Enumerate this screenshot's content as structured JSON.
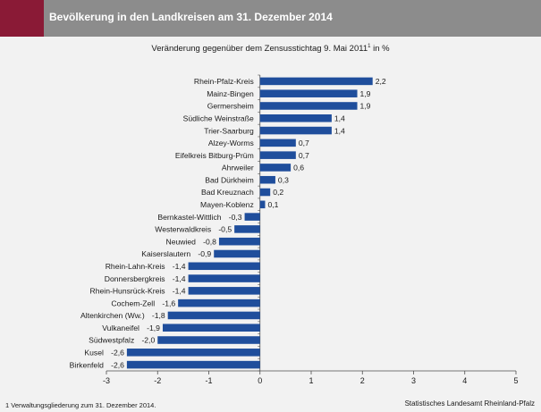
{
  "header": {
    "title": "Bevölkerung in den Landkreisen am 31. Dezember 2014",
    "accent_color": "#8a1a36",
    "band_color": "#8c8c8c"
  },
  "subtitle": {
    "text": "Veränderung gegenüber dem Zensusstichtag 9. Mai 2011",
    "superscript": "1",
    "suffix": " in %"
  },
  "footer": {
    "footnote": "1 Verwaltungsgliederung zum 31. Dezember 2014.",
    "source": "Statistisches Landesamt Rheinland-Pfalz"
  },
  "chart_data": {
    "type": "bar",
    "orientation": "horizontal",
    "title": "Veränderung gegenüber dem Zensusstichtag 9. Mai 2011 in %",
    "xlabel": "",
    "ylabel": "",
    "xlim": [
      -3,
      5
    ],
    "xticks": [
      -3,
      -2,
      -1,
      0,
      1,
      2,
      3,
      4,
      5
    ],
    "grid": false,
    "bar_color": "#1f4e9c",
    "categories": [
      "Rhein-Pfalz-Kreis",
      "Mainz-Bingen",
      "Germersheim",
      "Südliche Weinstraße",
      "Trier-Saarburg",
      "Alzey-Worms",
      "Eifelkreis Bitburg-Prüm",
      "Ahrweiler",
      "Bad Dürkheim",
      "Bad Kreuznach",
      "Mayen-Koblenz",
      "Bernkastel-Wittlich",
      "Westerwaldkreis",
      "Neuwied",
      "Kaiserslautern",
      "Rhein-Lahn-Kreis",
      "Donnersbergkreis",
      "Rhein-Hunsrück-Kreis",
      "Cochem-Zell",
      "Altenkirchen (Ww.)",
      "Vulkaneifel",
      "Südwestpfalz",
      "Kusel",
      "Birkenfeld"
    ],
    "values": [
      2.2,
      1.9,
      1.9,
      1.4,
      1.4,
      0.7,
      0.7,
      0.6,
      0.3,
      0.2,
      0.1,
      -0.3,
      -0.5,
      -0.8,
      -0.9,
      -1.4,
      -1.4,
      -1.4,
      -1.6,
      -1.8,
      -1.9,
      -2.0,
      -2.6,
      -2.6
    ],
    "value_labels": [
      "2,2",
      "1,9",
      "1,9",
      "1,4",
      "1,4",
      "0,7",
      "0,7",
      "0,6",
      "0,3",
      "0,2",
      "0,1",
      "-0,3",
      "-0,5",
      "-0,8",
      "-0,9",
      "-1,4",
      "-1,4",
      "-1,4",
      "-1,6",
      "-1,8",
      "-1,9",
      "-2,0",
      "-2,6",
      "-2,6"
    ]
  }
}
